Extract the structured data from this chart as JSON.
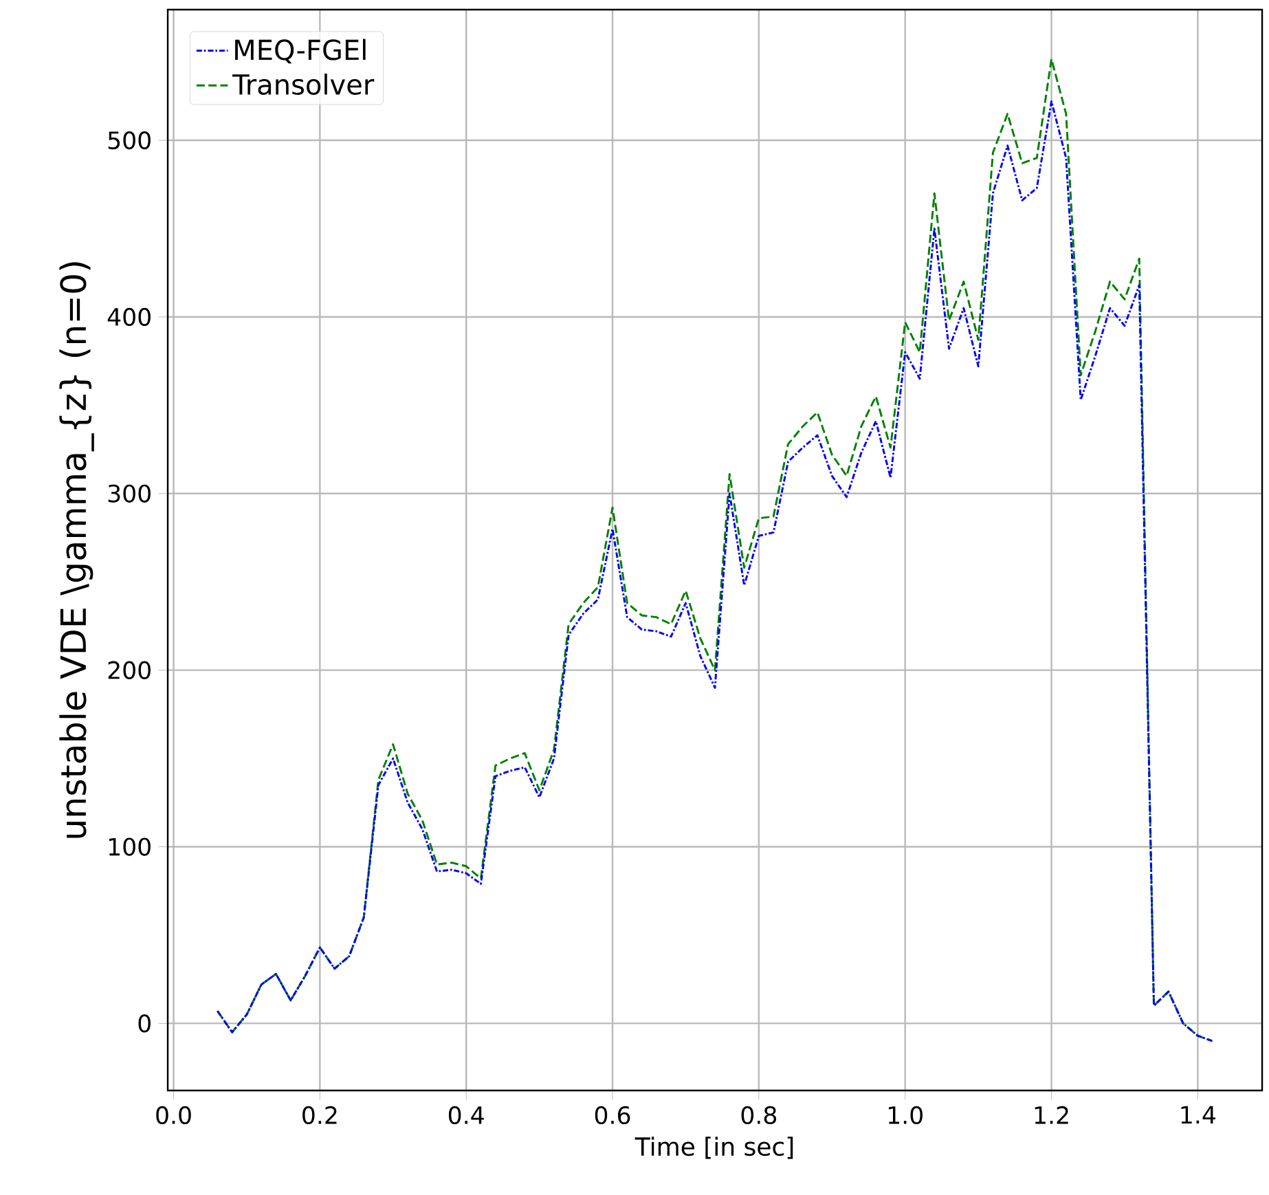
{
  "chart_data": {
    "type": "line",
    "xlabel": "Time [in sec]",
    "ylabel": "unstable VDE \\gamma_{z} (n=0)",
    "x": [
      0.06,
      0.08,
      0.1,
      0.12,
      0.14,
      0.16,
      0.18,
      0.2,
      0.22,
      0.24,
      0.26,
      0.28,
      0.3,
      0.32,
      0.34,
      0.36,
      0.38,
      0.4,
      0.42,
      0.44,
      0.46,
      0.48,
      0.5,
      0.52,
      0.54,
      0.56,
      0.58,
      0.6,
      0.62,
      0.64,
      0.66,
      0.68,
      0.7,
      0.72,
      0.74,
      0.76,
      0.78,
      0.8,
      0.82,
      0.84,
      0.86,
      0.88,
      0.9,
      0.92,
      0.94,
      0.96,
      0.98,
      1.0,
      1.02,
      1.04,
      1.06,
      1.08,
      1.1,
      1.12,
      1.14,
      1.16,
      1.18,
      1.2,
      1.22,
      1.24,
      1.26,
      1.28,
      1.3,
      1.32,
      1.34,
      1.36,
      1.38,
      1.4,
      1.42
    ],
    "series": [
      {
        "name": "MEQ-FGEl",
        "color": "#0000ff",
        "line_style": "dashdot",
        "values": [
          7,
          -5,
          5,
          22,
          28,
          13,
          27,
          43,
          31,
          38,
          60,
          135,
          150,
          125,
          110,
          86,
          87,
          85,
          79,
          140,
          143,
          145,
          128,
          150,
          220,
          232,
          240,
          280,
          230,
          223,
          222,
          219,
          238,
          208,
          190,
          300,
          248,
          276,
          278,
          318,
          326,
          333,
          310,
          298,
          323,
          341,
          309,
          380,
          365,
          450,
          382,
          405,
          372,
          470,
          497,
          466,
          473,
          522,
          490,
          353,
          378,
          405,
          395,
          418,
          10,
          18,
          0,
          -7,
          -10
        ]
      },
      {
        "name": "Transolver",
        "color": "#008000",
        "line_style": "dashed",
        "values": [
          7,
          -5,
          5,
          22,
          28,
          13,
          27,
          43,
          31,
          38,
          60,
          138,
          158,
          130,
          115,
          90,
          91,
          89,
          82,
          146,
          150,
          153,
          132,
          155,
          226,
          238,
          247,
          292,
          238,
          231,
          230,
          226,
          245,
          218,
          200,
          311,
          258,
          286,
          287,
          328,
          338,
          346,
          322,
          310,
          338,
          355,
          326,
          397,
          380,
          470,
          398,
          420,
          387,
          493,
          515,
          487,
          490,
          546,
          515,
          367,
          392,
          420,
          410,
          433,
          10,
          18,
          0,
          -7,
          -10
        ]
      }
    ],
    "xlim": [
      -0.008,
      1.488
    ],
    "ylim": [
      -38,
      574
    ],
    "xticks": [
      {
        "value": 0.0,
        "label": "0.0"
      },
      {
        "value": 0.2,
        "label": "0.2"
      },
      {
        "value": 0.4,
        "label": "0.4"
      },
      {
        "value": 0.6,
        "label": "0.6"
      },
      {
        "value": 0.8,
        "label": "0.8"
      },
      {
        "value": 1.0,
        "label": "1.0"
      },
      {
        "value": 1.2,
        "label": "1.2"
      },
      {
        "value": 1.4,
        "label": "1.4"
      }
    ],
    "yticks": [
      0,
      100,
      200,
      300,
      400,
      500
    ],
    "grid": true,
    "legend": "top left"
  }
}
